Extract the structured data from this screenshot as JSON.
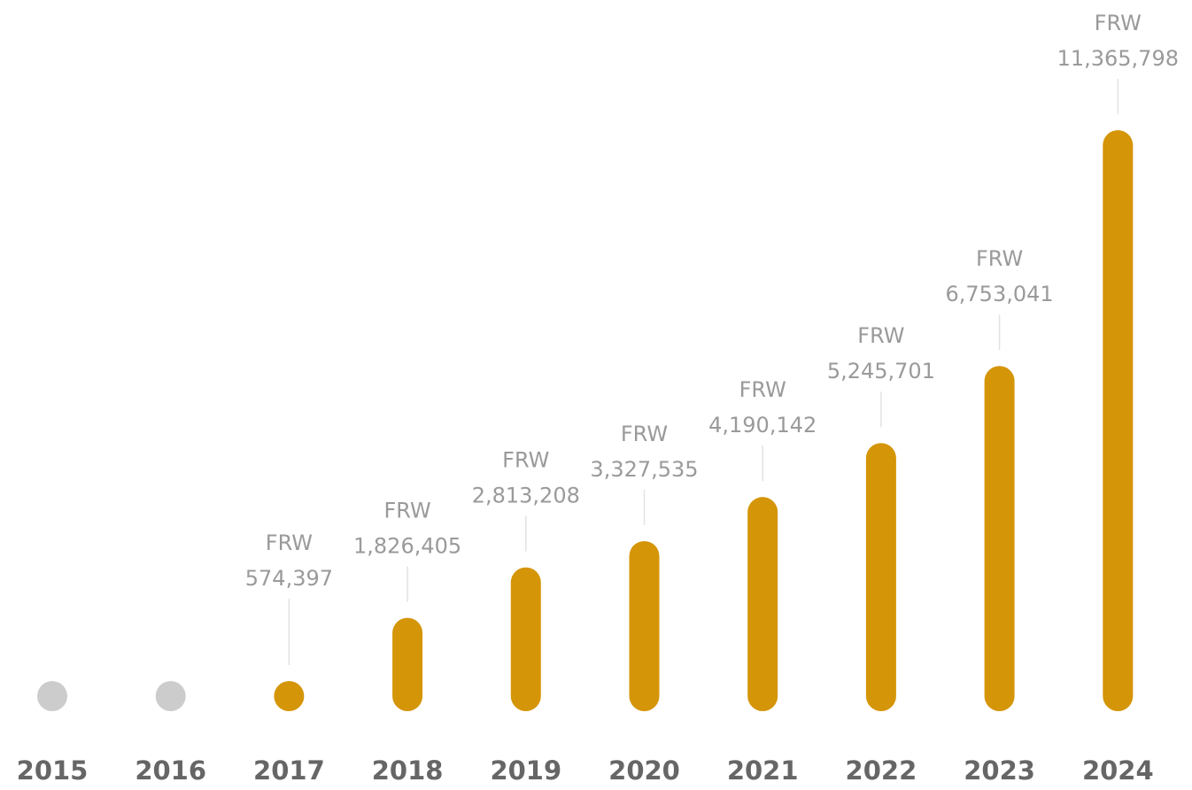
{
  "chart_data": {
    "type": "bar",
    "categories": [
      "2015",
      "2016",
      "2017",
      "2018",
      "2019",
      "2020",
      "2021",
      "2022",
      "2023",
      "2024"
    ],
    "values": [
      null,
      null,
      574397,
      1826405,
      2813208,
      3327535,
      4190142,
      5245701,
      6753041,
      11365798
    ],
    "value_labels": [
      null,
      null,
      "574,397",
      "1,826,405",
      "2,813,208",
      "3,327,535",
      "4,190,142",
      "5,245,701",
      "6,753,041",
      "11,365,798"
    ],
    "currency": "FRW",
    "color": "#d59508",
    "empty_color": "#cccccc"
  }
}
